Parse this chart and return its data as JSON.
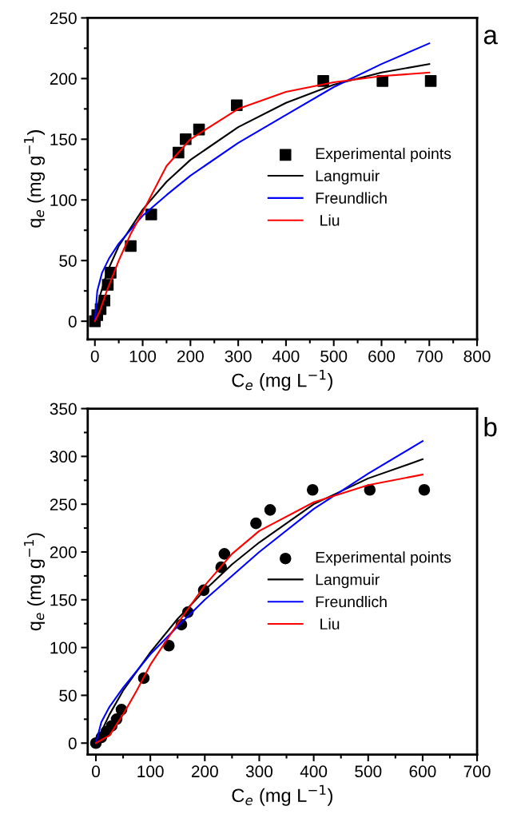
{
  "chart_data": [
    {
      "type": "scatter",
      "xlabel": "C$_{e}$ (mg L$^{−1}$)",
      "ylabel": "q$_{e}$ (mg g$^{−1}$)",
      "annotations": [
        "a"
      ],
      "xlim": [
        -15,
        800
      ],
      "ylim": [
        -15,
        250
      ],
      "xticks": [
        0,
        100,
        200,
        300,
        400,
        500,
        600,
        700,
        800
      ],
      "yticks": [
        0,
        50,
        100,
        150,
        200,
        250
      ],
      "legend": "right",
      "grid": false,
      "series": [
        {
          "name": "Experimental points",
          "marker": "square",
          "color": "#000000",
          "x": [
            0,
            5,
            12,
            20,
            27,
            33,
            75,
            118,
            175,
            190,
            218,
            297,
            478,
            602,
            703
          ],
          "values": [
            0,
            5,
            10,
            17,
            30,
            40,
            62,
            88,
            139,
            150,
            158,
            178,
            198,
            198,
            198
          ]
        },
        {
          "name": "Langmuir",
          "type": "line",
          "color": "#000000",
          "x": [
            0,
            10,
            25,
            50,
            100,
            150,
            200,
            300,
            400,
            500,
            600,
            700
          ],
          "values": [
            0,
            20,
            40,
            62,
            92,
            115,
            133,
            160,
            180,
            195,
            205,
            212
          ]
        },
        {
          "name": "Freundlich",
          "type": "line",
          "color": "#0000ff",
          "x": [
            0,
            5,
            15,
            30,
            50,
            100,
            150,
            200,
            300,
            400,
            500,
            600,
            700
          ],
          "values": [
            0,
            25,
            40,
            52,
            64,
            87,
            104,
            120,
            147,
            170,
            193,
            212,
            229
          ]
        },
        {
          "name": " Liu",
          "type": "line",
          "color": "#ff0000",
          "x": [
            0,
            10,
            25,
            50,
            75,
            100,
            150,
            200,
            300,
            400,
            500,
            600,
            700
          ],
          "values": [
            0,
            8,
            25,
            50,
            72,
            90,
            128,
            150,
            175,
            189,
            197,
            202,
            205
          ]
        }
      ]
    },
    {
      "type": "scatter",
      "xlabel": "C$_{e}$ (mg L$^{−1}$)",
      "ylabel": "q$_{e}$ (mg g$^{−1}$)",
      "annotations": [
        "b"
      ],
      "xlim": [
        -15,
        700
      ],
      "ylim": [
        -12,
        350
      ],
      "xticks": [
        0,
        100,
        200,
        300,
        400,
        500,
        600,
        700
      ],
      "yticks": [
        0,
        50,
        100,
        150,
        200,
        250,
        300,
        350
      ],
      "legend": "right",
      "grid": false,
      "series": [
        {
          "name": "Experimental points",
          "marker": "circle",
          "color": "#000000",
          "x": [
            0,
            10,
            19,
            29,
            38,
            47,
            88,
            134,
            157,
            169,
            198,
            230,
            236,
            294,
            320,
            398,
            503,
            603
          ],
          "values": [
            0,
            6,
            12,
            18,
            25,
            35,
            68,
            102,
            124,
            137,
            160,
            184,
            198,
            230,
            244,
            265,
            265,
            265
          ]
        },
        {
          "name": "Langmuir",
          "type": "line",
          "color": "#000000",
          "x": [
            0,
            25,
            50,
            100,
            150,
            200,
            250,
            300,
            400,
            500,
            600
          ],
          "values": [
            0,
            30,
            55,
            95,
            130,
            160,
            187,
            210,
            250,
            277,
            297
          ]
        },
        {
          "name": "Freundlich",
          "type": "line",
          "color": "#0000ff",
          "x": [
            0,
            10,
            25,
            50,
            100,
            150,
            200,
            300,
            400,
            500,
            600
          ],
          "values": [
            0,
            22,
            38,
            58,
            93,
            122,
            150,
            200,
            245,
            282,
            316
          ]
        },
        {
          "name": " Liu",
          "type": "line",
          "color": "#ff0000",
          "x": [
            0,
            25,
            50,
            75,
            100,
            150,
            200,
            250,
            300,
            400,
            500,
            600
          ],
          "values": [
            0,
            8,
            30,
            55,
            82,
            125,
            165,
            198,
            222,
            252,
            270,
            281
          ]
        }
      ]
    }
  ]
}
